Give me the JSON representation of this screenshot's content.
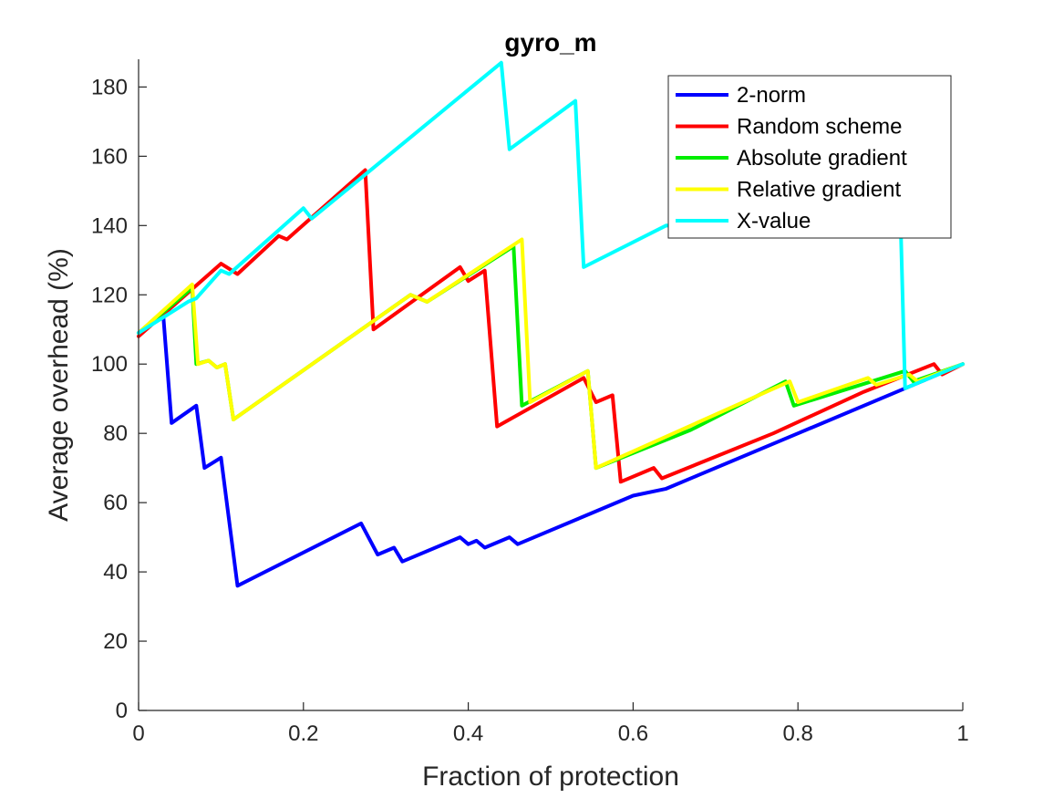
{
  "chart_data": {
    "type": "line",
    "title": "gyro_m",
    "xlabel": "Fraction of protection",
    "ylabel": "Average overhead (%)",
    "xlim": [
      0,
      1
    ],
    "ylim": [
      0,
      188
    ],
    "xticks": [
      0,
      0.2,
      0.4,
      0.6,
      0.8,
      1
    ],
    "xtick_labels": [
      "0",
      "0.2",
      "0.4",
      "0.6",
      "0.8",
      "1"
    ],
    "yticks": [
      0,
      20,
      40,
      60,
      80,
      100,
      120,
      140,
      160,
      180
    ],
    "ytick_labels": [
      "0",
      "20",
      "40",
      "60",
      "80",
      "100",
      "120",
      "140",
      "160",
      "180"
    ],
    "grid": false,
    "legend_position": "top-right",
    "series": [
      {
        "name": "2-norm",
        "color": "#0000ff",
        "points": [
          [
            0,
            109
          ],
          [
            0.03,
            114
          ],
          [
            0.04,
            83
          ],
          [
            0.07,
            88
          ],
          [
            0.08,
            70
          ],
          [
            0.1,
            73
          ],
          [
            0.12,
            36
          ],
          [
            0.27,
            54
          ],
          [
            0.29,
            45
          ],
          [
            0.31,
            47
          ],
          [
            0.32,
            43
          ],
          [
            0.39,
            50
          ],
          [
            0.4,
            48
          ],
          [
            0.41,
            49
          ],
          [
            0.42,
            47
          ],
          [
            0.45,
            50
          ],
          [
            0.46,
            48
          ],
          [
            0.55,
            57
          ],
          [
            0.6,
            62
          ],
          [
            0.64,
            64
          ],
          [
            0.68,
            68
          ],
          [
            0.8,
            80
          ],
          [
            0.93,
            93
          ],
          [
            1.0,
            100
          ]
        ]
      },
      {
        "name": "Random scheme",
        "color": "#ff0000",
        "points": [
          [
            0,
            108
          ],
          [
            0.1,
            129
          ],
          [
            0.12,
            126
          ],
          [
            0.17,
            137
          ],
          [
            0.18,
            136
          ],
          [
            0.275,
            156
          ],
          [
            0.285,
            110
          ],
          [
            0.39,
            128
          ],
          [
            0.4,
            124
          ],
          [
            0.42,
            127
          ],
          [
            0.435,
            82
          ],
          [
            0.54,
            96
          ],
          [
            0.555,
            89
          ],
          [
            0.575,
            91
          ],
          [
            0.585,
            66
          ],
          [
            0.625,
            70
          ],
          [
            0.635,
            67
          ],
          [
            0.77,
            80
          ],
          [
            0.88,
            92
          ],
          [
            0.965,
            100
          ],
          [
            0.975,
            97
          ],
          [
            1.0,
            100
          ]
        ]
      },
      {
        "name": "Absolute gradient",
        "color": "#00ee00",
        "points": [
          [
            0,
            109
          ],
          [
            0.065,
            122
          ],
          [
            0.07,
            100
          ],
          [
            0.085,
            101
          ],
          [
            0.095,
            99
          ],
          [
            0.105,
            100
          ],
          [
            0.115,
            84
          ],
          [
            0.33,
            120
          ],
          [
            0.35,
            118
          ],
          [
            0.455,
            134
          ],
          [
            0.465,
            88
          ],
          [
            0.545,
            98
          ],
          [
            0.555,
            70
          ],
          [
            0.67,
            81
          ],
          [
            0.785,
            95
          ],
          [
            0.795,
            88
          ],
          [
            0.93,
            98
          ],
          [
            0.94,
            95
          ],
          [
            1.0,
            100
          ]
        ]
      },
      {
        "name": "Relative gradient",
        "color": "#ffff00",
        "points": [
          [
            0,
            109
          ],
          [
            0.065,
            123
          ],
          [
            0.072,
            100
          ],
          [
            0.085,
            101
          ],
          [
            0.095,
            99
          ],
          [
            0.105,
            100
          ],
          [
            0.115,
            84
          ],
          [
            0.33,
            120
          ],
          [
            0.35,
            118
          ],
          [
            0.465,
            136
          ],
          [
            0.475,
            89
          ],
          [
            0.545,
            98
          ],
          [
            0.555,
            70
          ],
          [
            0.79,
            95
          ],
          [
            0.8,
            89
          ],
          [
            0.885,
            96
          ],
          [
            0.895,
            94
          ],
          [
            0.935,
            97
          ],
          [
            0.945,
            95
          ],
          [
            1.0,
            100
          ]
        ]
      },
      {
        "name": "X-value",
        "color": "#00ffff",
        "points": [
          [
            0,
            109
          ],
          [
            0.06,
            118
          ],
          [
            0.07,
            119
          ],
          [
            0.1,
            127
          ],
          [
            0.11,
            126
          ],
          [
            0.2,
            145
          ],
          [
            0.21,
            142
          ],
          [
            0.44,
            187
          ],
          [
            0.45,
            162
          ],
          [
            0.53,
            176
          ],
          [
            0.54,
            128
          ],
          [
            0.64,
            140
          ],
          [
            0.9,
            137
          ],
          [
            0.925,
            137
          ],
          [
            0.93,
            93
          ],
          [
            1.0,
            100
          ]
        ]
      }
    ]
  }
}
